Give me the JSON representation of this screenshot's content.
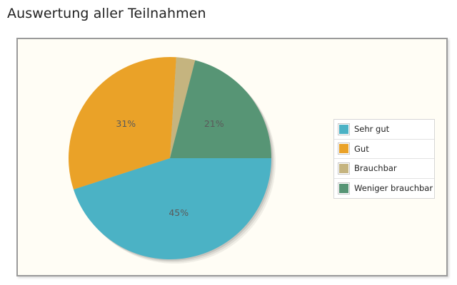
{
  "page": {
    "title": "Auswertung aller Teilnahmen"
  },
  "chart_data": {
    "type": "pie",
    "title": "",
    "categories": [
      "Sehr gut",
      "Gut",
      "Brauchbar",
      "Weniger brauchbar"
    ],
    "values": [
      45,
      31,
      3,
      21
    ],
    "labels": [
      "45%",
      "31%",
      "",
      "21%"
    ],
    "colors": [
      "#4bb2c5",
      "#eaa228",
      "#c5b47f",
      "#579575"
    ],
    "legend_position": "right",
    "start_angle_deg": 0,
    "direction": "clockwise-screen"
  },
  "colors": {
    "panel_background": "#fffdf5",
    "panel_border": "#9a9a9a",
    "label_text": "#5a5a5a"
  }
}
